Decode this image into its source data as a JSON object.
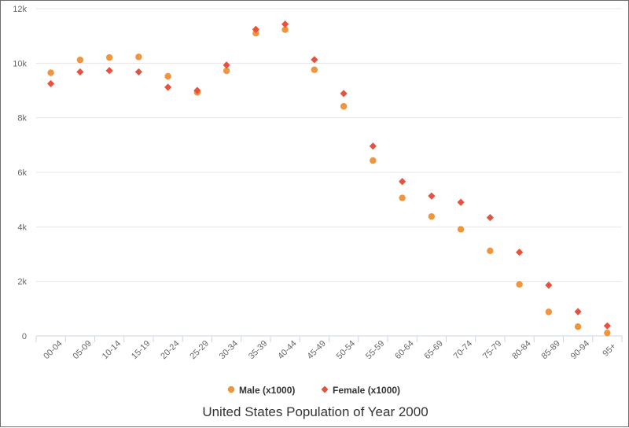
{
  "chart_data": {
    "type": "scatter",
    "title": "United States Population of Year 2000",
    "categories": [
      "00-04",
      "05-09",
      "10-14",
      "15-19",
      "20-24",
      "25-29",
      "30-34",
      "35-39",
      "40-44",
      "45-49",
      "50-54",
      "55-59",
      "60-64",
      "65-69",
      "70-74",
      "75-79",
      "80-84",
      "85-89",
      "90-94",
      "95+"
    ],
    "y_ticks": [
      "0",
      "2k",
      "4k",
      "6k",
      "8k",
      "10k",
      "12k"
    ],
    "ylim": [
      0,
      12000
    ],
    "grid": "horizontal",
    "legend_position": "bottom",
    "series": [
      {
        "name": "Male (x1000)",
        "marker": "circle",
        "color": "#f0953d",
        "values": [
          9650,
          10120,
          10210,
          10230,
          9520,
          8930,
          9720,
          11100,
          11230,
          9760,
          8420,
          6430,
          5060,
          4380,
          3910,
          3120,
          1890,
          880,
          340,
          110
        ]
      },
      {
        "name": "Female (x1000)",
        "marker": "diamond",
        "color": "#e8513d",
        "values": [
          9250,
          9680,
          9730,
          9680,
          9120,
          9000,
          9930,
          11240,
          11430,
          10130,
          8890,
          6960,
          5660,
          5130,
          4900,
          4340,
          3070,
          1860,
          890,
          370
        ]
      }
    ]
  }
}
